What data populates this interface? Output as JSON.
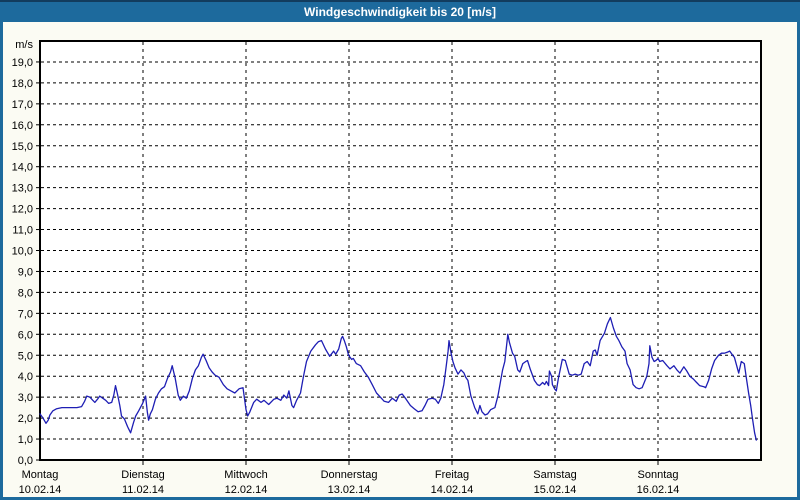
{
  "window": {
    "title": "Windgeschwindigkeit bis 20 [m/s]"
  },
  "colors": {
    "titlebar_bg": "#1d6a9d",
    "titlebar_text": "#ffffff",
    "frame_border": "#1d6a9d",
    "page_bg": "#fbfbf3",
    "plot_bg": "#ffffff",
    "plot_border": "#000000",
    "grid": "#000000",
    "line": "#1e1eb4"
  },
  "chart_data": {
    "type": "line",
    "title": "Windgeschwindigkeit bis 20 [m/s]",
    "y_unit": "m/s",
    "ylim": [
      0,
      20
    ],
    "y_tick_step": 1,
    "y_tick_labels": [
      "0,0",
      "1,0",
      "2,0",
      "3,0",
      "4,0",
      "5,0",
      "6,0",
      "7,0",
      "8,0",
      "9,0",
      "10,0",
      "11,0",
      "12,0",
      "13,0",
      "14,0",
      "15,0",
      "16,0",
      "17,0",
      "18,0",
      "19,0"
    ],
    "x_days": [
      {
        "name": "Montag",
        "date": "10.02.14"
      },
      {
        "name": "Dienstag",
        "date": "11.02.14"
      },
      {
        "name": "Mittwoch",
        "date": "12.02.14"
      },
      {
        "name": "Donnerstag",
        "date": "13.02.14"
      },
      {
        "name": "Freitag",
        "date": "14.02.14"
      },
      {
        "name": "Samstag",
        "date": "15.02.14"
      },
      {
        "name": "Sonntag",
        "date": "16.02.14"
      }
    ],
    "x_unit": "hours_since_2014-02-10_00:00",
    "x_range_hours": [
      0,
      168
    ],
    "grid": "dashed",
    "legend": "none",
    "series": [
      {
        "name": "Windgeschwindigkeit",
        "unit": "m/s",
        "points": [
          [
            0.0,
            2.2
          ],
          [
            0.7,
            2.0
          ],
          [
            1.4,
            1.75
          ],
          [
            1.9,
            1.9
          ],
          [
            2.3,
            2.15
          ],
          [
            3.0,
            2.35
          ],
          [
            3.9,
            2.45
          ],
          [
            5.1,
            2.5
          ],
          [
            6.3,
            2.5
          ],
          [
            7.4,
            2.5
          ],
          [
            8.6,
            2.5
          ],
          [
            9.7,
            2.55
          ],
          [
            10.4,
            2.8
          ],
          [
            10.9,
            3.05
          ],
          [
            11.6,
            3.0
          ],
          [
            12.3,
            2.85
          ],
          [
            12.8,
            2.75
          ],
          [
            13.4,
            2.9
          ],
          [
            13.9,
            3.05
          ],
          [
            14.6,
            2.95
          ],
          [
            15.3,
            2.85
          ],
          [
            16.0,
            2.7
          ],
          [
            16.7,
            2.75
          ],
          [
            17.2,
            3.1
          ],
          [
            17.6,
            3.55
          ],
          [
            18.1,
            3.1
          ],
          [
            18.6,
            2.6
          ],
          [
            19.0,
            2.1
          ],
          [
            19.7,
            1.95
          ],
          [
            20.4,
            1.6
          ],
          [
            21.1,
            1.3
          ],
          [
            21.8,
            1.8
          ],
          [
            22.3,
            2.1
          ],
          [
            23.0,
            2.35
          ],
          [
            23.4,
            2.5
          ],
          [
            23.9,
            2.7
          ],
          [
            24.3,
            2.9
          ],
          [
            24.6,
            3.05
          ],
          [
            25.0,
            2.3
          ],
          [
            25.3,
            1.9
          ],
          [
            25.7,
            2.2
          ],
          [
            26.2,
            2.4
          ],
          [
            26.9,
            2.9
          ],
          [
            27.6,
            3.2
          ],
          [
            28.3,
            3.4
          ],
          [
            29.0,
            3.5
          ],
          [
            29.7,
            3.9
          ],
          [
            30.4,
            4.2
          ],
          [
            30.8,
            4.5
          ],
          [
            31.5,
            3.9
          ],
          [
            32.2,
            3.1
          ],
          [
            32.7,
            2.85
          ],
          [
            33.4,
            3.05
          ],
          [
            34.1,
            2.95
          ],
          [
            34.8,
            3.3
          ],
          [
            35.5,
            3.9
          ],
          [
            36.2,
            4.3
          ],
          [
            36.9,
            4.5
          ],
          [
            37.6,
            4.9
          ],
          [
            38.0,
            5.05
          ],
          [
            38.7,
            4.75
          ],
          [
            39.4,
            4.4
          ],
          [
            40.1,
            4.2
          ],
          [
            40.8,
            4.05
          ],
          [
            41.7,
            3.95
          ],
          [
            42.7,
            3.6
          ],
          [
            43.6,
            3.4
          ],
          [
            44.5,
            3.3
          ],
          [
            45.4,
            3.2
          ],
          [
            46.4,
            3.4
          ],
          [
            47.3,
            3.45
          ],
          [
            48.0,
            2.4
          ],
          [
            48.4,
            2.1
          ],
          [
            48.9,
            2.3
          ],
          [
            49.8,
            2.75
          ],
          [
            50.5,
            2.9
          ],
          [
            51.5,
            2.75
          ],
          [
            52.2,
            2.85
          ],
          [
            53.3,
            2.65
          ],
          [
            54.5,
            2.9
          ],
          [
            55.2,
            2.95
          ],
          [
            56.1,
            2.85
          ],
          [
            56.8,
            3.1
          ],
          [
            57.5,
            2.95
          ],
          [
            58.0,
            3.3
          ],
          [
            58.7,
            2.6
          ],
          [
            59.1,
            2.5
          ],
          [
            59.8,
            2.85
          ],
          [
            60.7,
            3.2
          ],
          [
            61.4,
            4.0
          ],
          [
            62.1,
            4.7
          ],
          [
            63.1,
            5.2
          ],
          [
            64.2,
            5.5
          ],
          [
            64.9,
            5.65
          ],
          [
            65.6,
            5.7
          ],
          [
            66.5,
            5.3
          ],
          [
            67.5,
            4.95
          ],
          [
            68.4,
            5.2
          ],
          [
            68.9,
            5.05
          ],
          [
            69.6,
            5.3
          ],
          [
            70.2,
            5.8
          ],
          [
            70.5,
            5.9
          ],
          [
            70.9,
            5.7
          ],
          [
            71.4,
            5.4
          ],
          [
            71.9,
            5.0
          ],
          [
            72.6,
            4.8
          ],
          [
            73.0,
            4.85
          ],
          [
            73.7,
            4.6
          ],
          [
            74.7,
            4.5
          ],
          [
            75.6,
            4.2
          ],
          [
            76.5,
            3.95
          ],
          [
            77.4,
            3.6
          ],
          [
            78.4,
            3.2
          ],
          [
            79.3,
            3.0
          ],
          [
            80.2,
            2.8
          ],
          [
            81.2,
            2.75
          ],
          [
            82.1,
            2.95
          ],
          [
            83.0,
            2.8
          ],
          [
            83.7,
            3.1
          ],
          [
            84.4,
            3.15
          ],
          [
            85.3,
            2.9
          ],
          [
            86.3,
            2.6
          ],
          [
            87.2,
            2.45
          ],
          [
            88.1,
            2.3
          ],
          [
            89.0,
            2.35
          ],
          [
            89.7,
            2.6
          ],
          [
            90.4,
            2.9
          ],
          [
            91.4,
            2.95
          ],
          [
            92.1,
            2.9
          ],
          [
            92.8,
            2.7
          ],
          [
            93.4,
            2.95
          ],
          [
            94.1,
            3.6
          ],
          [
            94.6,
            4.4
          ],
          [
            95.1,
            5.2
          ],
          [
            95.3,
            5.7
          ],
          [
            95.8,
            5.1
          ],
          [
            96.2,
            4.7
          ],
          [
            96.7,
            4.4
          ],
          [
            97.4,
            4.1
          ],
          [
            98.1,
            4.3
          ],
          [
            98.8,
            4.15
          ],
          [
            99.2,
            3.95
          ],
          [
            99.7,
            3.8
          ],
          [
            100.4,
            3.05
          ],
          [
            101.3,
            2.5
          ],
          [
            102.0,
            2.2
          ],
          [
            102.5,
            2.6
          ],
          [
            103.0,
            2.3
          ],
          [
            103.7,
            2.15
          ],
          [
            104.3,
            2.2
          ],
          [
            105.0,
            2.4
          ],
          [
            106.0,
            2.5
          ],
          [
            106.7,
            3.05
          ],
          [
            107.4,
            3.85
          ],
          [
            107.8,
            4.3
          ],
          [
            108.3,
            4.7
          ],
          [
            108.8,
            5.6
          ],
          [
            109.0,
            6.0
          ],
          [
            109.4,
            5.6
          ],
          [
            110.1,
            5.1
          ],
          [
            110.6,
            4.95
          ],
          [
            111.3,
            4.3
          ],
          [
            111.8,
            4.2
          ],
          [
            112.5,
            4.6
          ],
          [
            113.2,
            4.7
          ],
          [
            113.6,
            4.75
          ],
          [
            114.3,
            4.3
          ],
          [
            115.2,
            3.8
          ],
          [
            115.9,
            3.6
          ],
          [
            116.4,
            3.55
          ],
          [
            117.1,
            3.7
          ],
          [
            117.6,
            3.6
          ],
          [
            118.0,
            3.75
          ],
          [
            118.5,
            3.55
          ],
          [
            118.7,
            4.25
          ],
          [
            119.2,
            4.0
          ],
          [
            119.4,
            3.6
          ],
          [
            119.9,
            3.4
          ],
          [
            120.3,
            3.3
          ],
          [
            120.8,
            3.9
          ],
          [
            121.3,
            4.4
          ],
          [
            121.7,
            4.8
          ],
          [
            122.4,
            4.75
          ],
          [
            123.3,
            4.1
          ],
          [
            124.0,
            4.05
          ],
          [
            124.7,
            4.1
          ],
          [
            125.4,
            4.05
          ],
          [
            126.1,
            4.1
          ],
          [
            126.8,
            4.6
          ],
          [
            127.5,
            4.7
          ],
          [
            128.2,
            4.5
          ],
          [
            128.9,
            5.2
          ],
          [
            129.4,
            5.25
          ],
          [
            129.8,
            5.0
          ],
          [
            130.5,
            5.7
          ],
          [
            131.5,
            6.05
          ],
          [
            132.2,
            6.5
          ],
          [
            132.9,
            6.8
          ],
          [
            133.6,
            6.3
          ],
          [
            134.3,
            5.9
          ],
          [
            134.9,
            5.7
          ],
          [
            135.6,
            5.4
          ],
          [
            136.3,
            5.2
          ],
          [
            136.8,
            4.6
          ],
          [
            137.5,
            4.3
          ],
          [
            138.2,
            3.6
          ],
          [
            138.9,
            3.45
          ],
          [
            139.6,
            3.4
          ],
          [
            140.3,
            3.45
          ],
          [
            141.0,
            3.8
          ],
          [
            141.4,
            4.0
          ],
          [
            141.9,
            4.6
          ],
          [
            142.1,
            5.45
          ],
          [
            142.6,
            4.9
          ],
          [
            143.1,
            4.7
          ],
          [
            143.5,
            4.75
          ],
          [
            144.0,
            4.85
          ],
          [
            144.4,
            4.7
          ],
          [
            145.1,
            4.75
          ],
          [
            146.1,
            4.5
          ],
          [
            146.8,
            4.35
          ],
          [
            147.7,
            4.5
          ],
          [
            148.4,
            4.3
          ],
          [
            149.1,
            4.15
          ],
          [
            150.0,
            4.45
          ],
          [
            150.7,
            4.25
          ],
          [
            151.4,
            4.0
          ],
          [
            152.3,
            3.85
          ],
          [
            153.0,
            3.7
          ],
          [
            153.7,
            3.55
          ],
          [
            154.7,
            3.5
          ],
          [
            155.1,
            3.45
          ],
          [
            155.8,
            3.8
          ],
          [
            156.5,
            4.35
          ],
          [
            157.2,
            4.75
          ],
          [
            158.1,
            5.0
          ],
          [
            158.8,
            5.1
          ],
          [
            159.5,
            5.1
          ],
          [
            160.2,
            5.15
          ],
          [
            160.7,
            5.2
          ],
          [
            161.4,
            5.0
          ],
          [
            161.8,
            4.9
          ],
          [
            162.8,
            4.15
          ],
          [
            163.4,
            4.7
          ],
          [
            164.1,
            4.6
          ],
          [
            164.6,
            3.9
          ],
          [
            165.1,
            3.2
          ],
          [
            165.6,
            2.6
          ],
          [
            166.0,
            2.0
          ],
          [
            166.5,
            1.3
          ],
          [
            166.9,
            0.95
          ]
        ]
      }
    ]
  }
}
